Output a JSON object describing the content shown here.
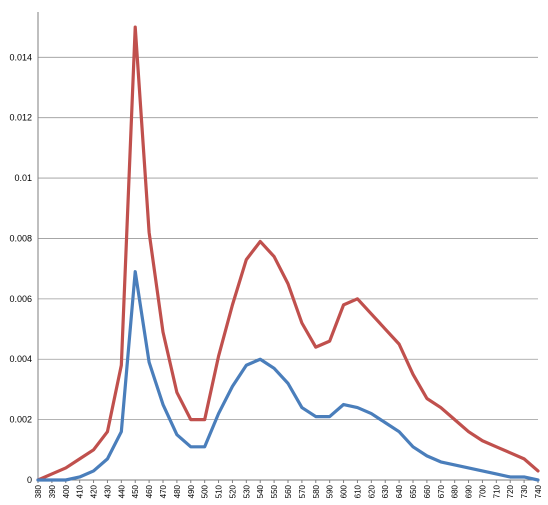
{
  "chart_data": {
    "type": "line",
    "title": "",
    "xlabel": "",
    "ylabel": "",
    "x": [
      380,
      390,
      400,
      410,
      420,
      430,
      440,
      450,
      460,
      470,
      480,
      490,
      500,
      510,
      520,
      530,
      540,
      550,
      560,
      570,
      580,
      590,
      600,
      610,
      620,
      630,
      640,
      650,
      660,
      670,
      680,
      690,
      700,
      710,
      720,
      730,
      740
    ],
    "xticks": [
      "380",
      "390",
      "400",
      "410",
      "420",
      "430",
      "440",
      "450",
      "460",
      "470",
      "480",
      "490",
      "500",
      "510",
      "520",
      "530",
      "540",
      "550",
      "560",
      "570",
      "580",
      "590",
      "600",
      "610",
      "620",
      "630",
      "640",
      "650",
      "660",
      "670",
      "680",
      "690",
      "700",
      "710",
      "720",
      "730",
      "740"
    ],
    "yticks": [
      "0",
      "0.002",
      "0.004",
      "0.006",
      "0.008",
      "0.01",
      "0.012",
      "0.014"
    ],
    "ylim": [
      0,
      0.0155
    ],
    "grid": true,
    "legend": "none",
    "series": [
      {
        "color": "#c0504d",
        "values": [
          0.0,
          0.0002,
          0.0004,
          0.0007,
          0.001,
          0.0016,
          0.0038,
          0.015,
          0.0082,
          0.0049,
          0.0029,
          0.002,
          0.002,
          0.0041,
          0.0058,
          0.0073,
          0.0079,
          0.0074,
          0.0065,
          0.0052,
          0.0044,
          0.0046,
          0.0058,
          0.006,
          0.0055,
          0.005,
          0.0045,
          0.0035,
          0.0027,
          0.0024,
          0.002,
          0.0016,
          0.0013,
          0.0011,
          0.0009,
          0.0007,
          0.0003
        ]
      },
      {
        "color": "#4a7ebb",
        "values": [
          0.0,
          0.0,
          0.0,
          0.0001,
          0.0003,
          0.0007,
          0.0016,
          0.0069,
          0.0039,
          0.0025,
          0.0015,
          0.0011,
          0.0011,
          0.0022,
          0.0031,
          0.0038,
          0.004,
          0.0037,
          0.0032,
          0.0024,
          0.0021,
          0.0021,
          0.0025,
          0.0024,
          0.0022,
          0.0019,
          0.0016,
          0.0011,
          0.0008,
          0.0006,
          0.0005,
          0.0004,
          0.0003,
          0.0002,
          0.0001,
          0.0001,
          0.0
        ]
      }
    ]
  }
}
